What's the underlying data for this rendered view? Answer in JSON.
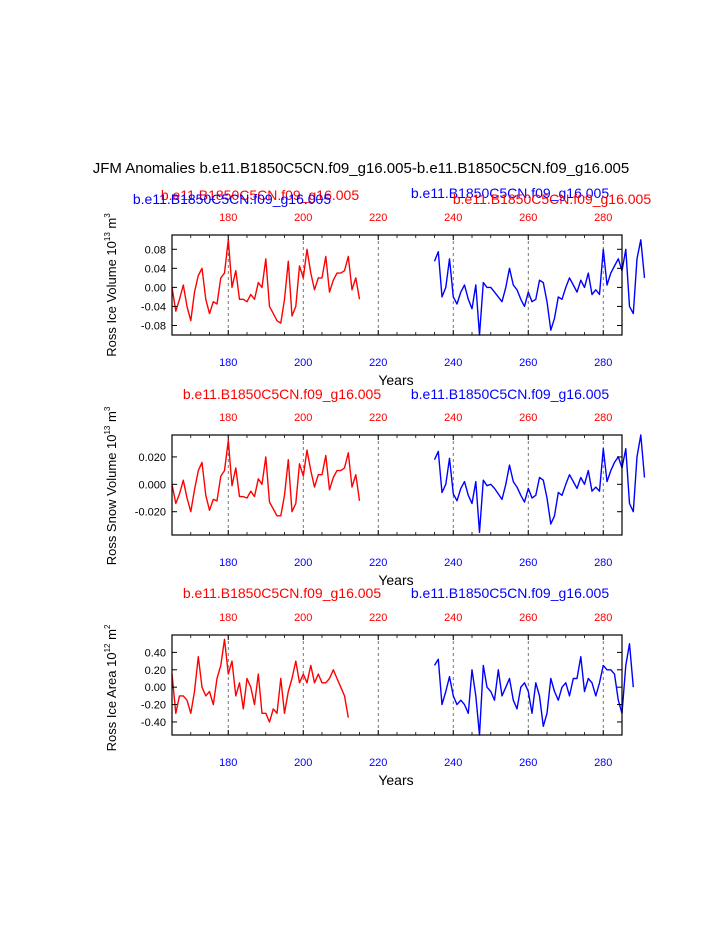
{
  "title": "JFM Anomalies b.e11.B1850C5CN.f09_g16.005-b.e11.B1850C5CN.f09_g16.005",
  "colors": {
    "red": "#ff0000",
    "blue": "#0000ff",
    "black": "#000000",
    "grid": "#555555"
  },
  "chart_data": [
    {
      "type": "line",
      "title": "",
      "top_left_label": "b.e11.B1850C5CN.f09_g16.005",
      "top_right_label": "b.e11.B1850C5CN.f09_g16.005",
      "over_left_label": "b.e11.B1850C5CN.f09_g16.005",
      "over_right_label": "b.e11.B1850C5CN.f09_g16.005",
      "ylabel": "Ross Ice Volume 10",
      "ylabel_sup": "13",
      "ylabel_unit": " m",
      "ylabel_unit_sup": "3",
      "xlabel": "Years",
      "xlim": [
        165,
        285
      ],
      "ylim": [
        -0.1,
        0.11
      ],
      "yticks": [
        -0.08,
        -0.04,
        0.0,
        0.04,
        0.08
      ],
      "yticklabels": [
        "-0.08",
        "-0.04",
        "0.00",
        "0.04",
        "0.08"
      ],
      "xticks": [
        180,
        200,
        220,
        240,
        260,
        280
      ],
      "xticklabels": [
        "180",
        "200",
        "220",
        "240",
        "260",
        "280"
      ],
      "series": [
        {
          "name": "b.e11.B1850C5CN.f09_g16.005",
          "color": "red",
          "x_start": 165,
          "values": [
            0.0,
            -0.05,
            -0.025,
            0.005,
            -0.04,
            -0.07,
            -0.01,
            0.025,
            0.04,
            -0.025,
            -0.055,
            -0.03,
            -0.035,
            0.02,
            0.03,
            0.1,
            0.0,
            0.035,
            -0.025,
            -0.025,
            -0.03,
            -0.015,
            -0.025,
            0.01,
            0.0,
            0.06,
            -0.04,
            -0.055,
            -0.07,
            -0.075,
            -0.025,
            0.055,
            -0.06,
            -0.04,
            0.045,
            0.02,
            0.08,
            0.03,
            -0.005,
            0.02,
            0.02,
            0.065,
            -0.01,
            0.015,
            0.03,
            0.03,
            0.035,
            0.065,
            -0.005,
            0.02,
            -0.025
          ]
        },
        {
          "name": "b.e11.B1850C5CN.f09_g16.005",
          "color": "blue",
          "x_start": 235,
          "values": [
            0.055,
            0.075,
            -0.02,
            0.0,
            0.06,
            -0.02,
            -0.035,
            -0.01,
            0.005,
            -0.025,
            -0.045,
            0.005,
            -0.1,
            0.01,
            0.0,
            0.0,
            -0.01,
            -0.02,
            -0.03,
            0.0,
            0.04,
            0.005,
            -0.005,
            -0.025,
            -0.04,
            -0.01,
            -0.03,
            -0.025,
            0.015,
            0.01,
            -0.03,
            -0.09,
            -0.065,
            -0.02,
            -0.025,
            0.0,
            0.02,
            0.005,
            -0.01,
            0.015,
            0.0,
            0.03,
            -0.015,
            -0.005,
            -0.015,
            0.08,
            0.005,
            0.03,
            0.045,
            0.06,
            0.035,
            0.08,
            -0.04,
            -0.055,
            0.06,
            0.1,
            0.02
          ]
        }
      ]
    },
    {
      "type": "line",
      "title": "",
      "top_left_label": "b.e11.B1850C5CN.f09_g16.005",
      "top_right_label": "b.e11.B1850C5CN.f09_g16.005",
      "ylabel": "Ross Snow Volume 10",
      "ylabel_sup": "13",
      "ylabel_unit": " m",
      "ylabel_unit_sup": "3",
      "xlabel": "Years",
      "xlim": [
        165,
        285
      ],
      "ylim": [
        -0.037,
        0.036
      ],
      "yticks": [
        -0.02,
        0.0,
        0.02
      ],
      "yticklabels": [
        "-0.020",
        "0.000",
        "0.020"
      ],
      "xticks": [
        180,
        200,
        220,
        240,
        260,
        280
      ],
      "xticklabels": [
        "180",
        "200",
        "220",
        "240",
        "260",
        "280"
      ],
      "series": [
        {
          "name": "b.e11.B1850C5CN.f09_g16.005",
          "color": "red",
          "x_start": 165,
          "values": [
            0.0,
            -0.014,
            -0.007,
            0.003,
            -0.01,
            -0.02,
            -0.004,
            0.01,
            0.016,
            -0.008,
            -0.019,
            -0.011,
            -0.012,
            0.006,
            0.01,
            0.032,
            -0.001,
            0.012,
            -0.009,
            -0.009,
            -0.01,
            -0.005,
            -0.009,
            0.004,
            0.0,
            0.02,
            -0.013,
            -0.018,
            -0.023,
            -0.023,
            -0.008,
            0.018,
            -0.02,
            -0.014,
            0.015,
            0.006,
            0.025,
            0.01,
            -0.002,
            0.007,
            0.007,
            0.021,
            -0.004,
            0.005,
            0.01,
            0.01,
            0.012,
            0.023,
            -0.002,
            0.007,
            -0.012
          ]
        },
        {
          "name": "b.e11.B1850C5CN.f09_g16.005",
          "color": "blue",
          "x_start": 235,
          "values": [
            0.018,
            0.024,
            -0.006,
            0.0,
            0.019,
            -0.007,
            -0.012,
            -0.003,
            0.002,
            -0.008,
            -0.014,
            0.002,
            -0.035,
            0.003,
            -0.001,
            0.0,
            -0.003,
            -0.007,
            -0.011,
            0.0,
            0.014,
            0.002,
            -0.002,
            -0.008,
            -0.013,
            -0.003,
            -0.01,
            -0.008,
            0.005,
            0.003,
            -0.01,
            -0.029,
            -0.023,
            -0.006,
            -0.008,
            0.0,
            0.007,
            0.002,
            -0.003,
            0.005,
            0.0,
            0.01,
            -0.005,
            -0.002,
            -0.005,
            0.026,
            0.002,
            0.01,
            0.016,
            0.02,
            0.012,
            0.026,
            -0.014,
            -0.02,
            0.02,
            0.036,
            0.005
          ]
        }
      ]
    },
    {
      "type": "line",
      "title": "",
      "top_left_label": "b.e11.B1850C5CN.f09_g16.005",
      "top_right_label": "b.e11.B1850C5CN.f09_g16.005",
      "ylabel": "Ross Ice Area 10",
      "ylabel_sup": "12",
      "ylabel_unit": " m",
      "ylabel_unit_sup": "2",
      "xlabel": "Years",
      "xlim": [
        165,
        285
      ],
      "ylim": [
        -0.55,
        0.6
      ],
      "yticks": [
        -0.4,
        -0.2,
        0.0,
        0.2,
        0.4
      ],
      "yticklabels": [
        "-0.40",
        "-0.20",
        "0.00",
        "0.20",
        "0.40"
      ],
      "xticks": [
        180,
        200,
        220,
        240,
        260,
        280
      ],
      "xticklabels": [
        "180",
        "200",
        "220",
        "240",
        "260",
        "280"
      ],
      "series": [
        {
          "name": "b.e11.B1850C5CN.f09_g16.005",
          "color": "red",
          "x_start": 165,
          "values": [
            0.15,
            -0.3,
            -0.1,
            -0.1,
            -0.15,
            -0.3,
            -0.05,
            0.35,
            0.0,
            -0.1,
            -0.05,
            -0.2,
            0.1,
            0.25,
            0.55,
            0.15,
            0.3,
            -0.1,
            0.05,
            -0.25,
            0.1,
            0.0,
            -0.2,
            0.15,
            -0.3,
            -0.3,
            -0.4,
            -0.25,
            -0.3,
            0.1,
            -0.3,
            -0.05,
            0.1,
            0.3,
            0.05,
            0.15,
            0.05,
            0.25,
            0.05,
            0.15,
            0.05,
            0.05,
            0.1,
            0.2,
            0.1,
            0.0,
            -0.1,
            -0.35
          ]
        },
        {
          "name": "b.e11.B1850C5CN.f09_g16.005",
          "color": "blue",
          "x_start": 235,
          "values": [
            0.25,
            0.32,
            -0.2,
            -0.05,
            0.12,
            -0.1,
            -0.2,
            -0.15,
            -0.2,
            -0.3,
            0.2,
            -0.1,
            -0.55,
            0.25,
            0.0,
            -0.05,
            -0.15,
            0.2,
            -0.1,
            0.0,
            0.1,
            -0.15,
            -0.25,
            0.0,
            0.05,
            -0.05,
            -0.3,
            0.05,
            -0.1,
            -0.45,
            -0.3,
            0.1,
            -0.05,
            -0.15,
            0.0,
            0.05,
            -0.1,
            0.1,
            0.1,
            0.35,
            -0.05,
            0.1,
            0.05,
            -0.1,
            0.05,
            0.25,
            0.2,
            0.2,
            0.15,
            -0.15,
            -0.3,
            0.25,
            0.5,
            0.0
          ]
        }
      ]
    }
  ]
}
